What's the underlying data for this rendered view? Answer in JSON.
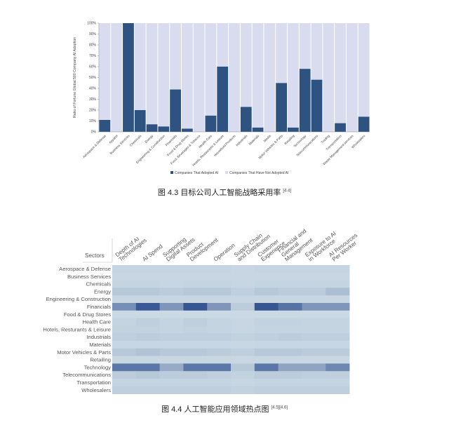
{
  "colors": {
    "adopted": "#2e5380",
    "not_adopted": "#d9dcef",
    "heat_low": "#cfdde6",
    "heat_high": "#2e4f8e",
    "axis": "#666666"
  },
  "figure1": {
    "caption": "图 4.3 目标公司人工智能战略采用率",
    "caption_ref": "[4.4]"
  },
  "figure2": {
    "caption": "图 4.4 人工智能应用领域热点图",
    "caption_ref": "[4.5][4.6]"
  },
  "chart_data": [
    {
      "type": "bar",
      "stacked": true,
      "ylabel": "Ratio of Fortune Global 500 Company AI Adoption",
      "xlabel": "",
      "ylim": [
        0,
        100
      ],
      "yticks": [
        "0%",
        "10%",
        "20%",
        "30%",
        "40%",
        "50%",
        "60%",
        "70%",
        "80%",
        "90%",
        "100%"
      ],
      "grid": false,
      "legend_position": "bottom",
      "categories": [
        "Aerospace & Defense",
        "Apparel",
        "Business Services",
        "Chemicals",
        "Energy",
        "Engineering & Construction",
        "Financials",
        "Food & Drug Stores",
        "Food, Beverages & Tobacco",
        "Health Care",
        "Hotels, Restaurants & Leisure",
        "Household Products",
        "Industrials",
        "Materials",
        "Media",
        "Motor Vehicles & Parts",
        "Retailing",
        "Technology",
        "Telecommunications",
        "Trading",
        "Transportation",
        "Waste Management services",
        "Wholesalers"
      ],
      "series": [
        {
          "name": "Companies That Adopted AI",
          "values": [
            11,
            0,
            100,
            20,
            7,
            5,
            39,
            3,
            0,
            15,
            60,
            0,
            23,
            4,
            0,
            45,
            4,
            58,
            48,
            0,
            8,
            0,
            14
          ]
        },
        {
          "name": "Companies That Have Not Adopted AI",
          "values": [
            89,
            100,
            0,
            80,
            93,
            95,
            61,
            97,
            100,
            85,
            40,
            100,
            77,
            96,
            100,
            55,
            96,
            42,
            52,
            100,
            92,
            100,
            86
          ]
        }
      ]
    },
    {
      "type": "heatmap",
      "corner_label": "Sectors",
      "columns": [
        [
          "Depth of AI",
          "Technologies"
        ],
        [
          "AI Spend"
        ],
        [
          "Supporting",
          "Digital Assets"
        ],
        [
          "Product",
          "Development"
        ],
        [
          "Operation"
        ],
        [
          "Supply Chain",
          "and Distribution"
        ],
        [
          "Customer",
          "Experience"
        ],
        [
          "Financial and",
          "General",
          "Management"
        ],
        [
          "Exposure to AI",
          "in Workforce"
        ],
        [
          "AI Resources",
          "Per Worker"
        ]
      ],
      "rows": [
        "Aerospace & Defense",
        "Business Services",
        "Chemicals",
        "Energy",
        "Engineering & Construction",
        "Financials",
        "Food & Drug Stores",
        "Health Care",
        "Hotels, Resturants & Leisure",
        "Industrials",
        "Materials",
        "Motor Vehicles & Parts",
        "Retailing",
        "Technology",
        "Telecommunications",
        "Transportation",
        "Wholesalers"
      ],
      "values": [
        [
          0.06,
          0.06,
          0.06,
          0.06,
          0.06,
          0.05,
          0.06,
          0.06,
          0.06,
          0.06
        ],
        [
          0.05,
          0.05,
          0.05,
          0.05,
          0.05,
          0.05,
          0.05,
          0.05,
          0.05,
          0.05
        ],
        [
          0.06,
          0.06,
          0.05,
          0.06,
          0.06,
          0.05,
          0.06,
          0.06,
          0.06,
          0.06
        ],
        [
          0.15,
          0.15,
          0.12,
          0.15,
          0.15,
          0.1,
          0.15,
          0.12,
          0.12,
          0.22
        ],
        [
          0.05,
          0.05,
          0.05,
          0.05,
          0.05,
          0.05,
          0.05,
          0.05,
          0.05,
          0.05
        ],
        [
          0.55,
          0.92,
          0.5,
          0.95,
          0.5,
          0.12,
          0.95,
          0.75,
          0.5,
          0.5
        ],
        [
          0.03,
          0.03,
          0.03,
          0.03,
          0.03,
          0.03,
          0.03,
          0.03,
          0.03,
          0.03
        ],
        [
          0.06,
          0.1,
          0.06,
          0.1,
          0.06,
          0.05,
          0.08,
          0.08,
          0.06,
          0.06
        ],
        [
          0.08,
          0.08,
          0.06,
          0.08,
          0.06,
          0.05,
          0.06,
          0.06,
          0.06,
          0.06
        ],
        [
          0.1,
          0.12,
          0.1,
          0.1,
          0.1,
          0.08,
          0.1,
          0.12,
          0.1,
          0.1
        ],
        [
          0.05,
          0.05,
          0.05,
          0.05,
          0.05,
          0.04,
          0.05,
          0.05,
          0.05,
          0.05
        ],
        [
          0.15,
          0.18,
          0.15,
          0.15,
          0.12,
          0.1,
          0.15,
          0.15,
          0.12,
          0.12
        ],
        [
          0.04,
          0.04,
          0.04,
          0.04,
          0.04,
          0.04,
          0.04,
          0.04,
          0.04,
          0.04
        ],
        [
          0.72,
          0.72,
          0.35,
          0.72,
          0.72,
          0.15,
          0.72,
          0.4,
          0.4,
          0.6
        ],
        [
          0.12,
          0.15,
          0.12,
          0.12,
          0.1,
          0.08,
          0.12,
          0.12,
          0.1,
          0.1
        ],
        [
          0.06,
          0.06,
          0.06,
          0.06,
          0.06,
          0.05,
          0.06,
          0.06,
          0.06,
          0.06
        ],
        [
          0.1,
          0.1,
          0.1,
          0.1,
          0.1,
          0.08,
          0.1,
          0.1,
          0.1,
          0.1
        ]
      ]
    }
  ]
}
